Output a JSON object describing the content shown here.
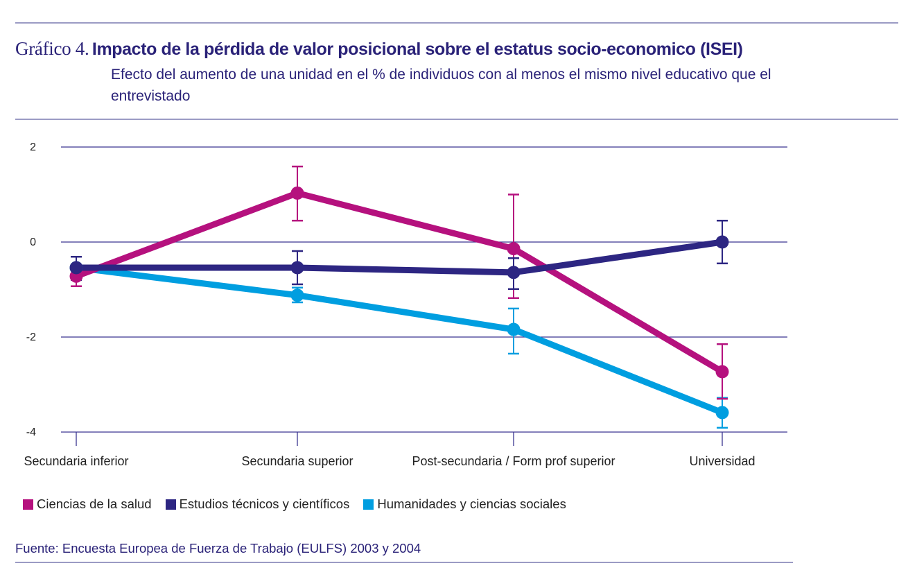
{
  "header": {
    "title_prefix": "Gráfico 4.",
    "title_main": "Impacto de la pérdida de valor posicional sobre el estatus socio-economico (ISEI)",
    "subtitle": "Efecto del aumento de una unidad en el % de individuos con al menos el mismo nivel educativo que el entrevistado"
  },
  "footer": {
    "source": "Fuente: Encuesta Europea de Fuerza de Trabajo (EULFS) 2003 y 2004"
  },
  "chart_data": {
    "type": "line",
    "title": "Impacto de la pérdida de valor posicional sobre el estatus socio-economico (ISEI)",
    "subtitle": "Efecto del aumento de una unidad en el % de individuos con al menos el mismo nivel educativo que el entrevistado",
    "xlabel": "",
    "ylabel": "",
    "categories": [
      "Secundaria inferior",
      "Secundaria superior",
      "Post-secundaria / Form prof superior",
      "Universidad"
    ],
    "ylim": [
      -4,
      2
    ],
    "yticks": [
      2,
      0,
      -2,
      -4
    ],
    "ytick_labels": [
      "2",
      "0",
      "-2",
      "-4"
    ],
    "grid": true,
    "legend_position": "bottom-left",
    "series": [
      {
        "name": "Ciencias de la salud",
        "color": "#b5117e",
        "values": [
          -0.72,
          1.03,
          -0.14,
          -2.73
        ],
        "error_low": [
          -0.93,
          0.45,
          -1.18,
          -3.3
        ],
        "error_high": [
          -0.5,
          1.59,
          1.0,
          -2.15
        ]
      },
      {
        "name": "Estudios técnicos y científicos",
        "color": "#2d2682",
        "values": [
          -0.54,
          -0.54,
          -0.64,
          0.0
        ],
        "error_low": [
          -0.8,
          -0.89,
          -0.99,
          -0.45
        ],
        "error_high": [
          -0.31,
          -0.19,
          -0.34,
          0.45
        ]
      },
      {
        "name": "Humanidades y ciencias sociales",
        "color": "#009ee0",
        "values": [
          -0.54,
          -1.12,
          -1.84,
          -3.59
        ],
        "error_low": [
          -0.6,
          -1.27,
          -2.35,
          -3.91
        ],
        "error_high": [
          -0.5,
          -0.96,
          -1.4,
          -3.28
        ]
      }
    ]
  }
}
